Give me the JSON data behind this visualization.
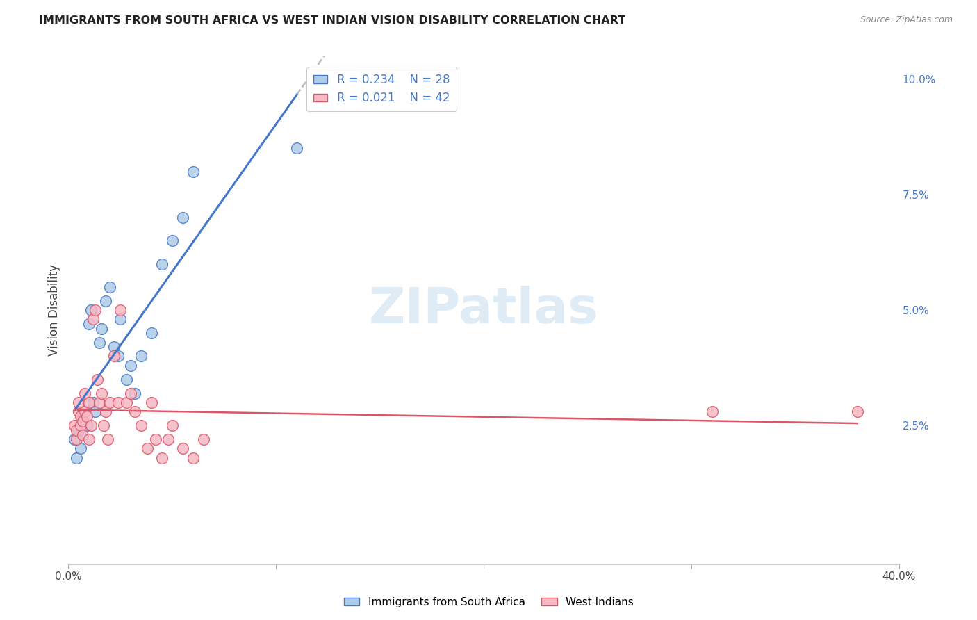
{
  "title": "IMMIGRANTS FROM SOUTH AFRICA VS WEST INDIAN VISION DISABILITY CORRELATION CHART",
  "source": "Source: ZipAtlas.com",
  "ylabel": "Vision Disability",
  "xlim": [
    0.0,
    0.4
  ],
  "ylim": [
    -0.005,
    0.105
  ],
  "xticks": [
    0.0,
    0.1,
    0.2,
    0.3,
    0.4
  ],
  "xticklabels": [
    "0.0%",
    "",
    "",
    "",
    "40.0%"
  ],
  "yticks": [
    0.025,
    0.05,
    0.075,
    0.1
  ],
  "yticklabels": [
    "2.5%",
    "5.0%",
    "7.5%",
    "10.0%"
  ],
  "grid_color": "#d0d0d0",
  "background_color": "#ffffff",
  "series1_color": "#aecce8",
  "series2_color": "#f5b8c4",
  "series1_label": "Immigrants from South Africa",
  "series2_label": "West Indians",
  "series1_R": "0.234",
  "series1_N": "28",
  "series2_R": "0.021",
  "series2_N": "42",
  "series1_line_color": "#4477cc",
  "series2_line_color": "#dd5566",
  "trend_ext_color": "#bbbbbb",
  "watermark": "ZIPatlas",
  "series1_x": [
    0.003,
    0.004,
    0.005,
    0.006,
    0.007,
    0.008,
    0.009,
    0.01,
    0.011,
    0.012,
    0.013,
    0.015,
    0.016,
    0.018,
    0.02,
    0.022,
    0.024,
    0.025,
    0.028,
    0.03,
    0.032,
    0.035,
    0.04,
    0.045,
    0.05,
    0.055,
    0.06,
    0.11
  ],
  "series1_y": [
    0.022,
    0.018,
    0.024,
    0.02,
    0.026,
    0.028,
    0.025,
    0.047,
    0.05,
    0.03,
    0.028,
    0.043,
    0.046,
    0.052,
    0.055,
    0.042,
    0.04,
    0.048,
    0.035,
    0.038,
    0.032,
    0.04,
    0.045,
    0.06,
    0.065,
    0.07,
    0.08,
    0.085
  ],
  "series2_x": [
    0.003,
    0.004,
    0.004,
    0.005,
    0.005,
    0.006,
    0.006,
    0.007,
    0.007,
    0.008,
    0.008,
    0.009,
    0.01,
    0.01,
    0.011,
    0.012,
    0.013,
    0.014,
    0.015,
    0.016,
    0.017,
    0.018,
    0.019,
    0.02,
    0.022,
    0.024,
    0.025,
    0.028,
    0.03,
    0.032,
    0.035,
    0.038,
    0.04,
    0.042,
    0.045,
    0.048,
    0.05,
    0.055,
    0.06,
    0.065,
    0.31,
    0.38
  ],
  "series2_y": [
    0.025,
    0.022,
    0.024,
    0.028,
    0.03,
    0.025,
    0.027,
    0.023,
    0.026,
    0.028,
    0.032,
    0.027,
    0.022,
    0.03,
    0.025,
    0.048,
    0.05,
    0.035,
    0.03,
    0.032,
    0.025,
    0.028,
    0.022,
    0.03,
    0.04,
    0.03,
    0.05,
    0.03,
    0.032,
    0.028,
    0.025,
    0.02,
    0.03,
    0.022,
    0.018,
    0.022,
    0.025,
    0.02,
    0.018,
    0.022,
    0.028,
    0.028
  ],
  "trend1_x0": 0.003,
  "trend1_x1": 0.11,
  "trend2_x0": 0.003,
  "trend2_x1": 0.38,
  "trend_dash_x0": 0.11,
  "trend_dash_x1": 0.4
}
